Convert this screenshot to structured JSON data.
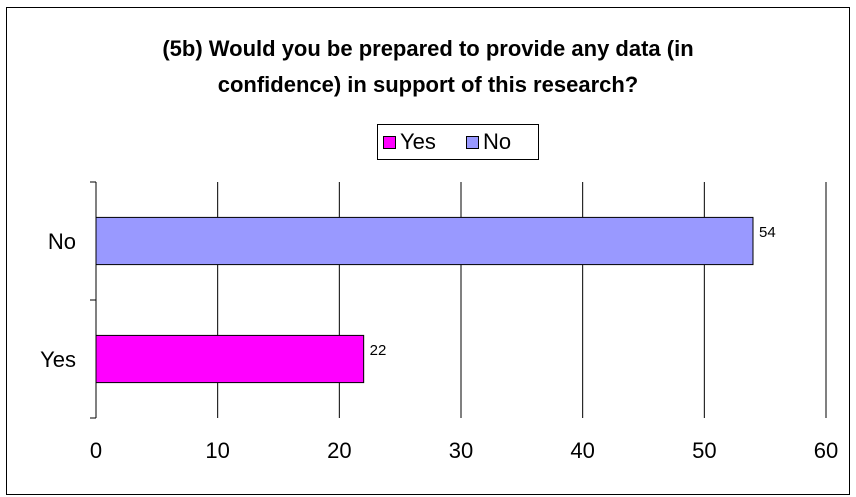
{
  "chart_data": {
    "type": "bar",
    "orientation": "horizontal",
    "title_lines": [
      "(5b) Would you be prepared to provide any data (in",
      "confidence) in support of this research?"
    ],
    "categories": [
      "No",
      "Yes"
    ],
    "values": [
      54,
      22
    ],
    "bar_colors": [
      "#9999FF",
      "#FF00FF"
    ],
    "data_labels": [
      "54",
      "22"
    ],
    "legend": [
      {
        "label": "Yes",
        "color": "#FF00FF"
      },
      {
        "label": "No",
        "color": "#9999FF"
      }
    ],
    "legend_placement": "top-center",
    "xlim": [
      0,
      60
    ],
    "x_ticks": [
      0,
      10,
      20,
      30,
      40,
      50,
      60
    ],
    "x_tick_labels": [
      "0",
      "10",
      "20",
      "30",
      "40",
      "50",
      "60"
    ],
    "grid": "vertical",
    "xlabel": "",
    "ylabel": ""
  }
}
